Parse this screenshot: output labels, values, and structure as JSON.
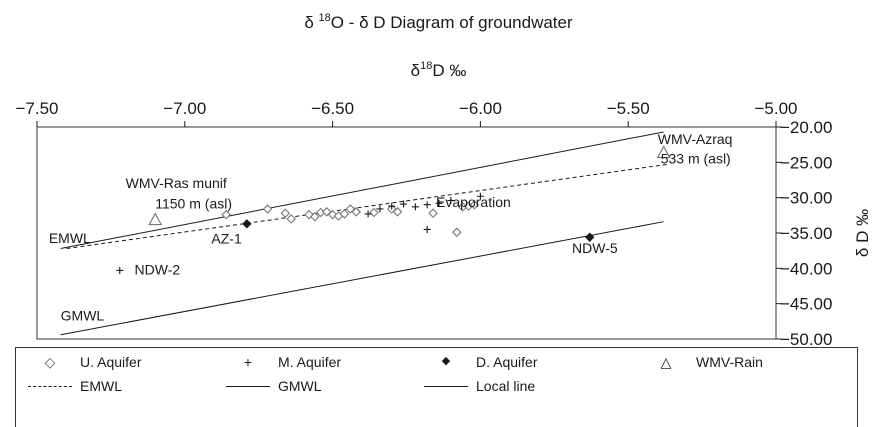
{
  "title": "δ ¹⁸O - δ D Diagram of groundwater",
  "title_parts": {
    "pre": "δ ",
    "sup": "18",
    "post": "O - δ D Diagram of groundwater"
  },
  "xlabel_parts": {
    "pre": "δ",
    "sup": "18",
    "post": "D ‰"
  },
  "ylabel": "δ D ‰",
  "chart_data": {
    "type": "scatter",
    "xlim": [
      -7.5,
      -5.0
    ],
    "ylim": [
      -50.0,
      -20.0
    ],
    "x_axis_position": "top",
    "y_axis_position": "right",
    "x_reversed": false,
    "y_reversed": true,
    "xticks": [
      "−7.50",
      "−7.00",
      "−6.50",
      "−6.00",
      "−5.50",
      "−5.00"
    ],
    "xtick_values": [
      -7.5,
      -7.0,
      -6.5,
      -6.0,
      -5.5,
      -5.0
    ],
    "yticks": [
      "−20.00",
      "−25.00",
      "−30.00",
      "−35.00",
      "−40.00",
      "−45.00",
      "−50.00"
    ],
    "ytick_values": [
      -20,
      -25,
      -30,
      -35,
      -40,
      -45,
      -50
    ],
    "series": [
      {
        "name": "U. Aquifer",
        "marker": "diamond",
        "points": [
          [
            -6.86,
            -32.4
          ],
          [
            -6.72,
            -31.6
          ],
          [
            -6.66,
            -32.2
          ],
          [
            -6.64,
            -33.0
          ],
          [
            -6.58,
            -32.4
          ],
          [
            -6.56,
            -32.7
          ],
          [
            -6.54,
            -32.1
          ],
          [
            -6.52,
            -32.0
          ],
          [
            -6.5,
            -32.4
          ],
          [
            -6.48,
            -32.6
          ],
          [
            -6.46,
            -32.3
          ],
          [
            -6.44,
            -31.6
          ],
          [
            -6.42,
            -32.0
          ],
          [
            -6.36,
            -32.1
          ],
          [
            -6.3,
            -31.6
          ],
          [
            -6.28,
            -32.0
          ],
          [
            -6.16,
            -32.2
          ],
          [
            -6.08,
            -34.9
          ],
          [
            -6.06,
            -31.3
          ],
          [
            -6.04,
            -31.2
          ],
          [
            -6.02,
            -31.0
          ]
        ]
      },
      {
        "name": "M. Aquifer",
        "marker": "plus",
        "points": [
          [
            -7.22,
            -40.3
          ],
          [
            -6.38,
            -32.3
          ],
          [
            -6.34,
            -31.6
          ],
          [
            -6.3,
            -31.2
          ],
          [
            -6.26,
            -30.9
          ],
          [
            -6.22,
            -31.3
          ],
          [
            -6.18,
            -31.0
          ],
          [
            -6.14,
            -30.8
          ],
          [
            -6.1,
            -30.4
          ],
          [
            -6.0,
            -29.8
          ],
          [
            -6.18,
            -34.5
          ]
        ]
      },
      {
        "name": "D. Aquifer",
        "marker": "filled-diamond",
        "points": [
          [
            -6.79,
            -33.7
          ],
          [
            -5.63,
            -35.6
          ]
        ]
      },
      {
        "name": "WMV-Rain",
        "marker": "triangle",
        "points": [
          [
            -7.1,
            -33.1
          ],
          [
            -5.38,
            -23.6
          ]
        ]
      }
    ],
    "lines": [
      {
        "name": "EMWL",
        "style": "dashed",
        "points": [
          [
            -7.4,
            -37.2
          ],
          [
            -5.37,
            -25.3
          ]
        ]
      },
      {
        "name": "GMWL",
        "style": "solid",
        "points": [
          [
            -7.42,
            -49.4
          ],
          [
            -5.38,
            -33.4
          ]
        ]
      },
      {
        "name": "Local line",
        "style": "solid",
        "points": [
          [
            -7.42,
            -37.2
          ],
          [
            -5.38,
            -20.7
          ]
        ]
      }
    ],
    "annotations": [
      {
        "text": "WMV-Ras munif",
        "x": -7.2,
        "y": -28.6
      },
      {
        "text": "1150 m (asl)",
        "x": -7.1,
        "y": -31.5
      },
      {
        "text": "WMV-Azraq",
        "x": -5.4,
        "y": -22.4
      },
      {
        "text": "533 m (asl)",
        "x": -5.39,
        "y": -25.2
      },
      {
        "text": "Evaporation",
        "x": -6.15,
        "y": -31.3
      },
      {
        "text": "EMWL",
        "x": -7.46,
        "y": -36.4
      },
      {
        "text": "AZ-1",
        "x": -6.91,
        "y": -36.5
      },
      {
        "text": "NDW-2",
        "x": -7.17,
        "y": -40.9
      },
      {
        "text": "NDW-5",
        "x": -5.69,
        "y": -37.8
      },
      {
        "text": "GMWL",
        "x": -7.42,
        "y": -47.4
      }
    ],
    "legend_position": "bottom",
    "grid": false
  },
  "legend": [
    {
      "label": "U. Aquifer",
      "symbol": "◇"
    },
    {
      "label": "M. Aquifer",
      "symbol": "+"
    },
    {
      "label": "D. Aquifer",
      "symbol": "◆"
    },
    {
      "label": "WMV-Rain",
      "symbol": "△"
    },
    {
      "label": "EMWL",
      "symbol": "dashed"
    },
    {
      "label": "GMWL",
      "symbol": "solid"
    },
    {
      "label": "Local line",
      "symbol": "solid"
    }
  ],
  "colors": {
    "ink": "#1a1a1a",
    "marker": "#777777",
    "frame": "#333333"
  }
}
